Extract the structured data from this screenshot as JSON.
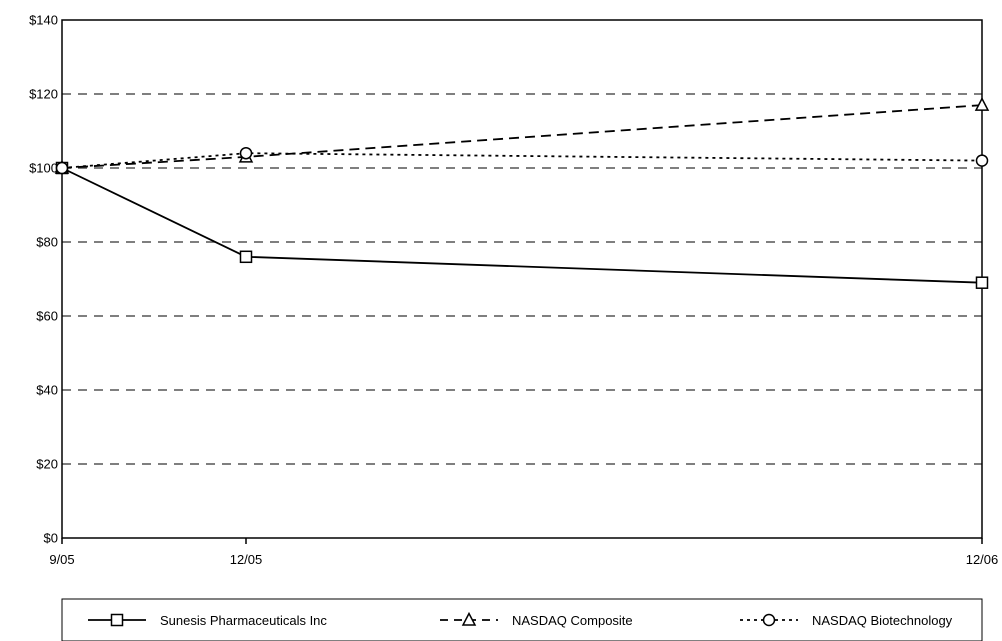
{
  "chart_data": {
    "type": "line",
    "categories": [
      "9/05",
      "12/05",
      "12/06"
    ],
    "x": [
      0,
      3,
      15
    ],
    "ylim": [
      0,
      140
    ],
    "yticks": [
      0,
      20,
      40,
      60,
      80,
      100,
      120,
      140
    ],
    "ytick_labels": [
      "$0",
      "$20",
      "$40",
      "$60",
      "$80",
      "$100",
      "$120",
      "$140"
    ],
    "grid": "horizontal-dashed",
    "legend_position": "bottom",
    "series": [
      {
        "name": "Sunesis Pharmaceuticals Inc",
        "values": [
          100,
          76,
          69
        ],
        "marker": "square",
        "line": "solid",
        "color": "#000000"
      },
      {
        "name": "NASDAQ Composite",
        "values": [
          100,
          103,
          117
        ],
        "marker": "triangle",
        "line": "dashed",
        "color": "#000000"
      },
      {
        "name": "NASDAQ Biotechnology",
        "values": [
          100,
          104,
          102
        ],
        "marker": "circle",
        "line": "dotted",
        "color": "#000000"
      }
    ]
  }
}
